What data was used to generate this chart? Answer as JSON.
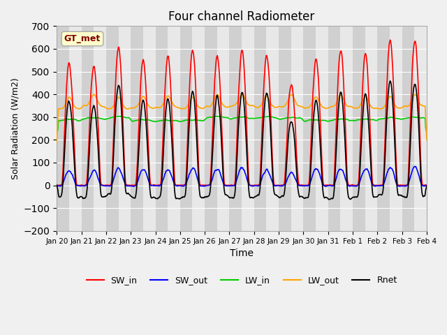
{
  "title": "Four channel Radiometer",
  "xlabel": "Time",
  "ylabel": "Solar Radiation (W/m2)",
  "ylim": [
    -200,
    700
  ],
  "yticks": [
    -200,
    -100,
    0,
    100,
    200,
    300,
    400,
    500,
    600,
    700
  ],
  "tick_labels": [
    "Jan 20",
    "Jan 21",
    "Jan 22",
    "Jan 23",
    "Jan 24",
    "Jan 25",
    "Jan 26",
    "Jan 27",
    "Jan 28",
    "Jan 29",
    "Jan 30",
    "Jan 31",
    "Feb 1",
    "Feb 2",
    "Feb 3",
    "Feb 4"
  ],
  "station_label": "GT_met",
  "bg_color": "#f0f0f0",
  "plot_bg": "#e8e8e8",
  "series": {
    "SW_in": {
      "color": "#ff0000",
      "lw": 1.2
    },
    "SW_out": {
      "color": "#0000ff",
      "lw": 1.2
    },
    "LW_in": {
      "color": "#00cc00",
      "lw": 1.2
    },
    "LW_out": {
      "color": "#ffa500",
      "lw": 1.2
    },
    "Rnet": {
      "color": "#000000",
      "lw": 1.2
    }
  },
  "legend_order": [
    "SW_in",
    "SW_out",
    "LW_in",
    "LW_out",
    "Rnet"
  ]
}
